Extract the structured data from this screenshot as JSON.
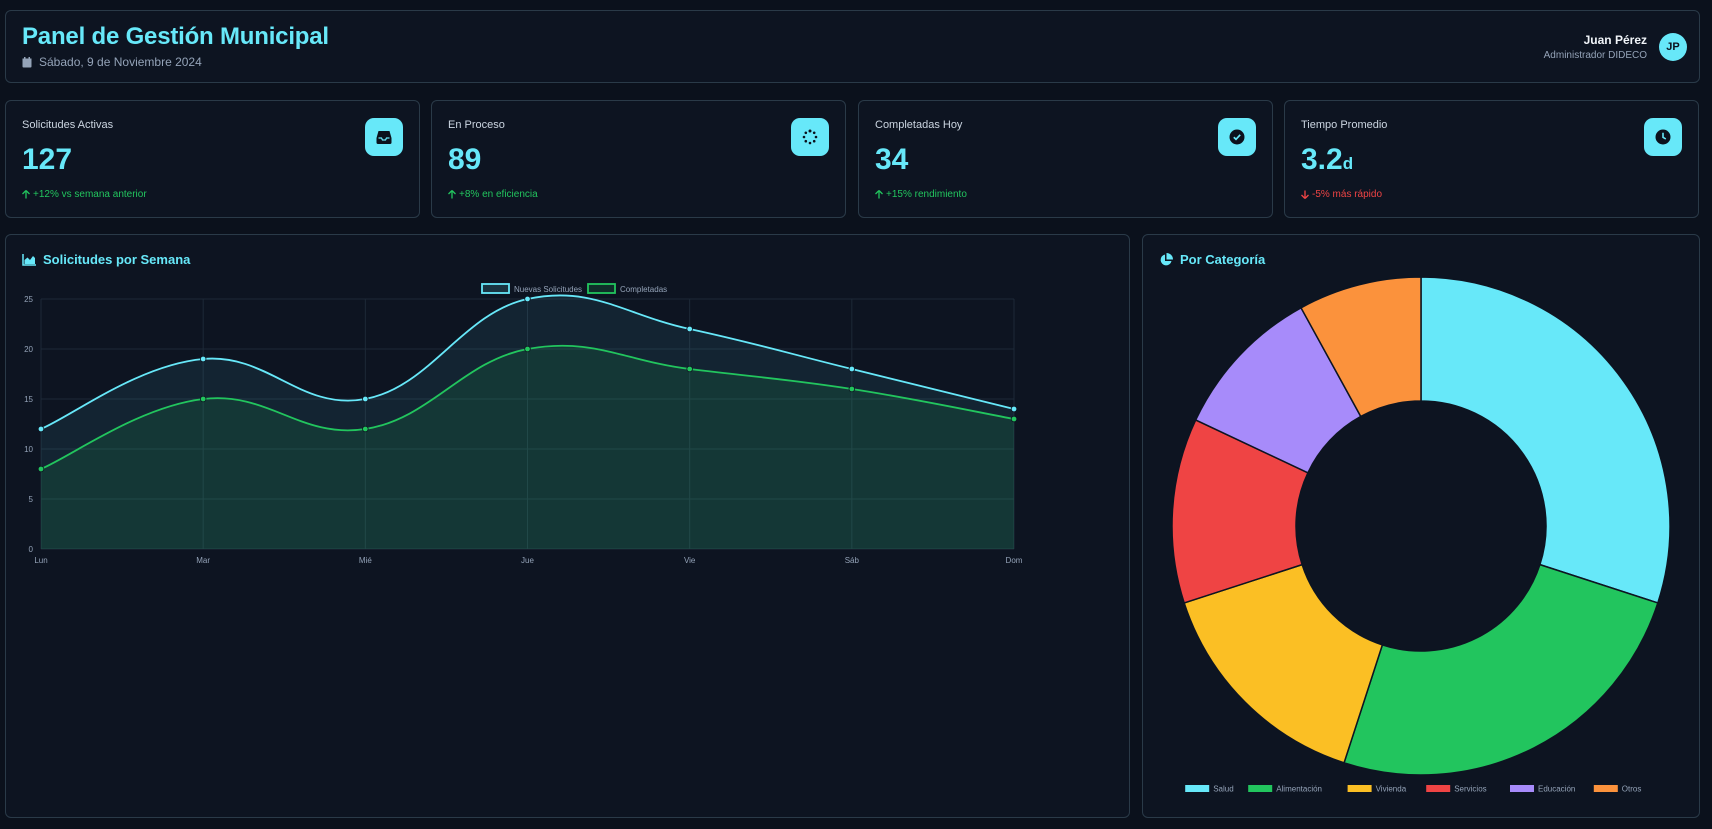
{
  "header": {
    "title": "Panel de Gestión Municipal",
    "date": "Sábado, 9 de Noviembre 2024",
    "user_name": "Juan Pérez",
    "user_role": "Administrador DIDECO",
    "avatar_initials": "JP"
  },
  "stats": [
    {
      "label": "Solicitudes Activas",
      "value": "127",
      "unit": "",
      "trend": "+12% vs semana anterior",
      "direction": "up",
      "icon": "inbox-icon"
    },
    {
      "label": "En Proceso",
      "value": "89",
      "unit": "",
      "trend": "+8% en eficiencia",
      "direction": "up",
      "icon": "spinner-icon"
    },
    {
      "label": "Completadas Hoy",
      "value": "34",
      "unit": "",
      "trend": "+15% rendimiento",
      "direction": "up",
      "icon": "check-circle-icon"
    },
    {
      "label": "Tiempo Promedio",
      "value": "3.2",
      "unit": "d",
      "trend": "-5% más rápido",
      "direction": "down",
      "icon": "clock-icon"
    }
  ],
  "line_panel": {
    "title": "Solicitudes por Semana",
    "icon": "chart-area-icon"
  },
  "donut_panel": {
    "title": "Por Categoría",
    "icon": "chart-pie-icon"
  },
  "colors": {
    "accent": "#67e8f9",
    "green": "#22c55e",
    "red": "#ef4444",
    "background": "#0b111c"
  },
  "chart_data": [
    {
      "type": "line",
      "categories": [
        "Lun",
        "Mar",
        "Mié",
        "Jue",
        "Vie",
        "Sáb",
        "Dom"
      ],
      "series": [
        {
          "name": "Nuevas Solicitudes",
          "values": [
            12,
            19,
            15,
            25,
            22,
            18,
            14
          ],
          "color": "#67e8f9"
        },
        {
          "name": "Completadas",
          "values": [
            8,
            15,
            12,
            20,
            18,
            16,
            13
          ],
          "color": "#22c55e"
        }
      ],
      "ylim": [
        0,
        25
      ],
      "yticks": [
        0,
        5,
        10,
        15,
        20,
        25
      ],
      "grid": true,
      "fill": true,
      "legend": "top-center"
    },
    {
      "type": "pie",
      "donut": true,
      "categories": [
        "Salud",
        "Alimentación",
        "Vivienda",
        "Servicios",
        "Educación",
        "Otros"
      ],
      "values": [
        30,
        25,
        15,
        12,
        10,
        8
      ],
      "colors": [
        "#67e8f9",
        "#22c55e",
        "#fbbf24",
        "#ef4444",
        "#a78bfa",
        "#fb923c"
      ],
      "legend": "bottom"
    }
  ]
}
